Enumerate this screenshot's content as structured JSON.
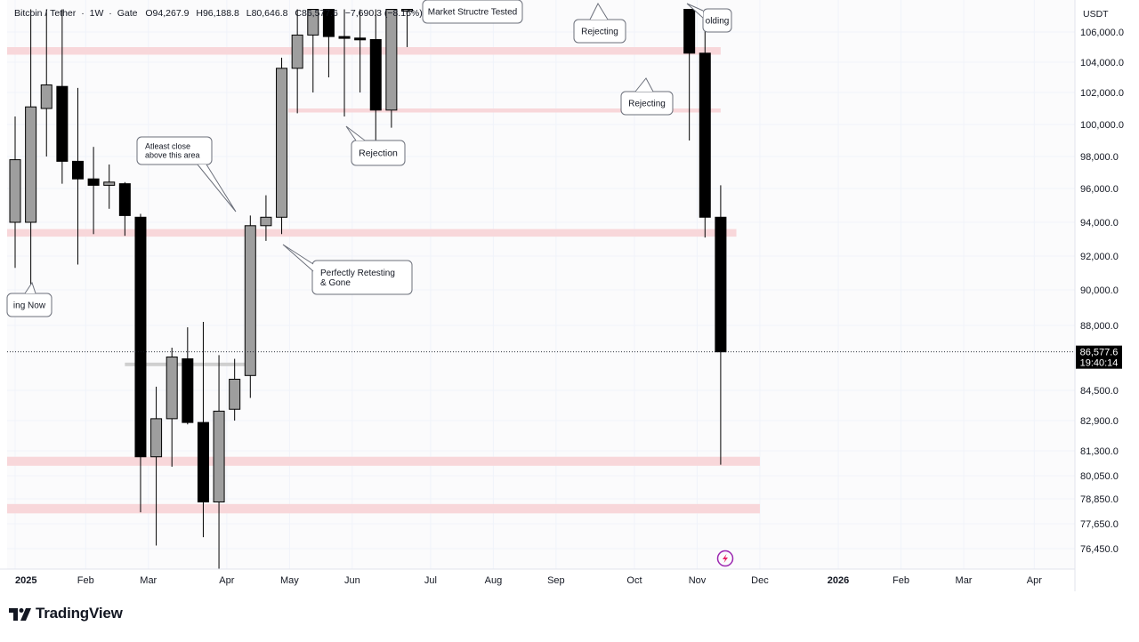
{
  "header": {
    "symbol": "Bitcoin / Tether",
    "sep1": "·",
    "timeframe": "1W",
    "sep2": "·",
    "exchange": "Gate",
    "open": "O94,267.9",
    "high": "H96,188.8",
    "low": "L80,646.8",
    "close": "C86,577.6",
    "change": "−7,690.3 (−8.16%)"
  },
  "currency_label": "USDT",
  "price_tag": {
    "price": "86,577.6",
    "countdown": "19:40:14"
  },
  "brand": {
    "name": "TradingView"
  },
  "colors": {
    "bull": "#9e9e9e",
    "bear": "#000000",
    "zone": "#f8d7da",
    "grid": "#f0f3fa",
    "price_line": "#131722",
    "lightning": "#9c27b0"
  },
  "chart_data": {
    "type": "candlestick",
    "ylim": [
      75500,
      107500
    ],
    "y_ticks": [
      {
        "value": 106000,
        "label": "106,000.0"
      },
      {
        "value": 104000,
        "label": "104,000.0"
      },
      {
        "value": 102000,
        "label": "102,000.0"
      },
      {
        "value": 100000,
        "label": "100,000.0"
      },
      {
        "value": 98000,
        "label": "98,000.0"
      },
      {
        "value": 96000,
        "label": "96,000.0"
      },
      {
        "value": 94000,
        "label": "94,000.0"
      },
      {
        "value": 92000,
        "label": "92,000.0"
      },
      {
        "value": 90000,
        "label": "90,000.0"
      },
      {
        "value": 88000,
        "label": "88,000.0"
      },
      {
        "value": 84500,
        "label": "84,500.0"
      },
      {
        "value": 82900,
        "label": "82,900.0"
      },
      {
        "value": 81300,
        "label": "81,300.0"
      },
      {
        "value": 80050,
        "label": "80,050.0"
      },
      {
        "value": 78850,
        "label": "78,850.0"
      },
      {
        "value": 77650,
        "label": "77,650.0"
      },
      {
        "value": 76450,
        "label": "76,450.0"
      }
    ],
    "x_ticks": [
      {
        "week": 0,
        "label": "2025"
      },
      {
        "week": 4.5,
        "label": "Feb"
      },
      {
        "week": 8.5,
        "label": "Mar"
      },
      {
        "week": 13.5,
        "label": "Apr"
      },
      {
        "week": 17.5,
        "label": "May"
      },
      {
        "week": 21.5,
        "label": "Jun"
      },
      {
        "week": 26.5,
        "label": "Jul"
      },
      {
        "week": 30.5,
        "label": "Aug"
      },
      {
        "week": 34.5,
        "label": "Sep"
      },
      {
        "week": 39.5,
        "label": "Oct"
      },
      {
        "week": 43.5,
        "label": "Nov"
      },
      {
        "week": 47.5,
        "label": "Dec"
      },
      {
        "week": 52.5,
        "label": "2026"
      },
      {
        "week": 56.5,
        "label": "Feb"
      },
      {
        "week": 60.5,
        "label": "Mar"
      },
      {
        "week": 65,
        "label": "Apr"
      }
    ],
    "candles": [
      {
        "w": 0,
        "o": 94000,
        "h": 100500,
        "l": 91300,
        "c": 97800
      },
      {
        "w": 1,
        "o": 94000,
        "h": 107500,
        "l": 89500,
        "c": 101100
      },
      {
        "w": 2,
        "o": 101000,
        "h": 107500,
        "l": 98000,
        "c": 102500
      },
      {
        "w": 3,
        "o": 102400,
        "h": 107500,
        "l": 96300,
        "c": 97700
      },
      {
        "w": 4,
        "o": 97700,
        "h": 102300,
        "l": 91500,
        "c": 96600
      },
      {
        "w": 5,
        "o": 96600,
        "h": 98600,
        "l": 93300,
        "c": 96200
      },
      {
        "w": 6,
        "o": 96200,
        "h": 97500,
        "l": 94800,
        "c": 96400
      },
      {
        "w": 7,
        "o": 96300,
        "h": 96400,
        "l": 93200,
        "c": 94400
      },
      {
        "w": 8,
        "o": 94300,
        "h": 94500,
        "l": 78200,
        "c": 81000
      },
      {
        "w": 9,
        "o": 81000,
        "h": 84700,
        "l": 76600,
        "c": 83000
      },
      {
        "w": 10,
        "o": 83000,
        "h": 86800,
        "l": 80500,
        "c": 86300
      },
      {
        "w": 11,
        "o": 86200,
        "h": 87900,
        "l": 82700,
        "c": 82800
      },
      {
        "w": 12,
        "o": 82800,
        "h": 88200,
        "l": 77000,
        "c": 78700
      },
      {
        "w": 13,
        "o": 78700,
        "h": 86400,
        "l": 75300,
        "c": 83400
      },
      {
        "w": 14,
        "o": 83500,
        "h": 86200,
        "l": 82900,
        "c": 85100
      },
      {
        "w": 15,
        "o": 85300,
        "h": 94400,
        "l": 84100,
        "c": 93800
      },
      {
        "w": 16,
        "o": 93800,
        "h": 95600,
        "l": 92900,
        "c": 94300
      },
      {
        "w": 17,
        "o": 94300,
        "h": 104300,
        "l": 93300,
        "c": 103600
      },
      {
        "w": 18,
        "o": 103600,
        "h": 107500,
        "l": 100700,
        "c": 105800
      },
      {
        "w": 19,
        "o": 105800,
        "h": 107500,
        "l": 102000,
        "c": 107500
      },
      {
        "w": 20,
        "o": 107500,
        "h": 107500,
        "l": 103000,
        "c": 105700
      },
      {
        "w": 21,
        "o": 105700,
        "h": 107500,
        "l": 100500,
        "c": 105600
      },
      {
        "w": 22,
        "o": 105600,
        "h": 107500,
        "l": 102000,
        "c": 105500
      },
      {
        "w": 23,
        "o": 105500,
        "h": 107500,
        "l": 98600,
        "c": 100900
      },
      {
        "w": 24,
        "o": 100900,
        "h": 107500,
        "l": 99800,
        "c": 107500
      },
      {
        "w": 25,
        "o": 107500,
        "h": 107500,
        "l": 105000,
        "c": 107500
      },
      {
        "w": 43,
        "o": 107500,
        "h": 107500,
        "l": 99000,
        "c": 104600
      },
      {
        "w": 44,
        "o": 104600,
        "h": 107500,
        "l": 93100,
        "c": 94300
      },
      {
        "w": 45,
        "o": 94300,
        "h": 96200,
        "l": 80600,
        "c": 86578
      }
    ],
    "zones": [
      {
        "from_week": 0,
        "to_week": 45,
        "y_top": 105000,
        "y_bottom": 104500
      },
      {
        "from_week": 18,
        "to_week": 45,
        "y_top": 101000,
        "y_bottom": 100750
      },
      {
        "from_week": 0,
        "to_week": 46,
        "y_top": 93600,
        "y_bottom": 93150
      },
      {
        "from_week": 0,
        "to_week": 47.5,
        "y_top": 81000,
        "y_bottom": 80550
      },
      {
        "from_week": 0,
        "to_week": 47.5,
        "y_top": 78600,
        "y_bottom": 78150
      }
    ],
    "grey_levels": [
      {
        "from_week": 7,
        "to_week": 15,
        "y": 85900
      }
    ],
    "annotations": [
      {
        "text": "Atleast close above this area",
        "lines": [
          "Atleast close",
          "above this area"
        ],
        "points_to": "area above weeks 14–15"
      },
      {
        "text": "Perfectly Retesting & Gone",
        "lines": [
          "Perfectly Retesting",
          "& Gone"
        ],
        "points_to": "week 16 low"
      },
      {
        "text": "Rejection",
        "lines": [
          "Rejection"
        ],
        "points_to": "week 22"
      },
      {
        "text": "Rejecting",
        "lines": [
          "Rejecting"
        ],
        "points_to": "week 37 top"
      },
      {
        "text": "Rejecting",
        "lines": [
          "Rejecting"
        ],
        "points_to": "week 40"
      },
      {
        "text": "Holding",
        "lines": [
          "olding"
        ],
        "points_to": "week 43"
      },
      {
        "text": "Market Structre Tested",
        "lines": [
          "Market Structre Tested"
        ],
        "points_to": "top area"
      },
      {
        "text": "Holding Now",
        "lines": [
          "ing Now"
        ],
        "points_to": "week 1"
      }
    ],
    "last_price": 86577.6
  }
}
